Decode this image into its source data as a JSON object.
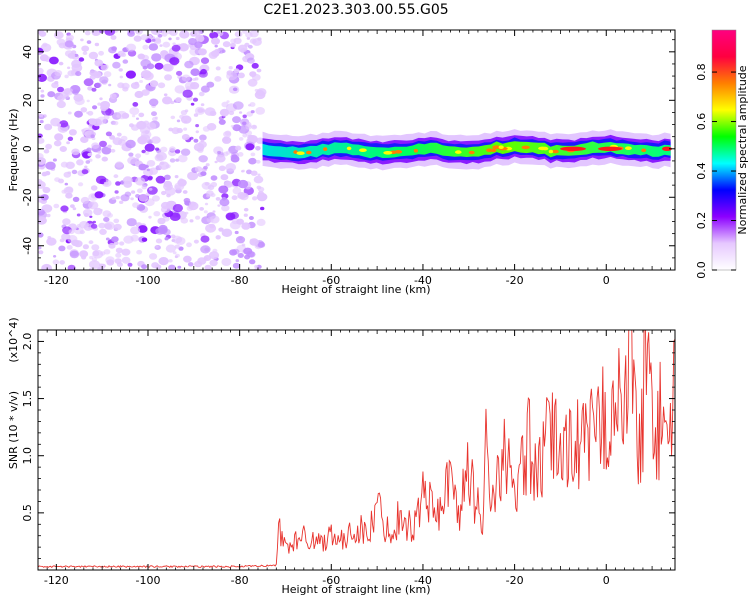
{
  "title": "C2E1.2023.303.00.55.G05",
  "chart_data": [
    {
      "type": "heatmap",
      "xlabel": "Height of straight line (km)",
      "ylabel": "Frequency (Hz)",
      "xlim": [
        -124,
        15
      ],
      "ylim": [
        -50,
        49
      ],
      "xticks": [
        -120,
        -100,
        -80,
        -60,
        -40,
        -20,
        0
      ],
      "yticks": [
        -40,
        -20,
        0,
        20,
        40
      ],
      "colorbar": {
        "label": "Normalized spectral amplitude",
        "range": [
          0,
          0.97
        ],
        "ticks": [
          0.0,
          0.2,
          0.4,
          0.6,
          0.8
        ],
        "colors": [
          "#ffffff",
          "#e6c8ff",
          "#8c00ff",
          "#0000ff",
          "#00ffff",
          "#00ff00",
          "#ffff00",
          "#ff7f00",
          "#ff0040",
          "#ff0080"
        ]
      },
      "regions": [
        {
          "x_from": -124,
          "x_to": -75,
          "freq_from": -50,
          "freq_to": 49,
          "amplitude": 0.12,
          "texture": "speckle"
        },
        {
          "x_from": -75,
          "x_to": 15,
          "freq_center": 0,
          "freq_halfwidth": 3,
          "amplitude_from": 0.3,
          "amplitude_to": 0.9
        }
      ]
    },
    {
      "type": "line",
      "xlabel": "Height of straight line (km)",
      "ylabel": "SNR (10 * v/v)",
      "y_multiplier": "(x10^4)",
      "xlim": [
        -124,
        15
      ],
      "ylim": [
        0,
        2.1
      ],
      "xticks": [
        -120,
        -100,
        -80,
        -60,
        -40,
        -20,
        0
      ],
      "yticks": [
        0.5,
        1.0,
        1.5,
        2.0
      ],
      "color": "#e8332d",
      "series": [
        {
          "x": [
            -124,
            -110,
            -100,
            -90,
            -80,
            -72,
            -71.5,
            -70,
            -68,
            -65,
            -62,
            -60,
            -57,
            -55,
            -52,
            -50,
            -47,
            -45,
            -42,
            -40,
            -37,
            -35,
            -32,
            -30,
            -27,
            -26,
            -25,
            -22,
            -20,
            -17,
            -15,
            -12,
            -10,
            -7,
            -5,
            -2,
            0,
            2,
            4,
            5.5,
            7,
            9,
            11,
            12,
            13,
            15
          ],
          "y": [
            0.03,
            0.03,
            0.03,
            0.03,
            0.03,
            0.04,
            0.38,
            0.2,
            0.25,
            0.3,
            0.23,
            0.35,
            0.22,
            0.4,
            0.3,
            0.55,
            0.3,
            0.5,
            0.35,
            0.7,
            0.45,
            0.8,
            0.55,
            0.85,
            0.4,
            1.52,
            0.5,
            1.1,
            0.55,
            1.15,
            0.75,
            1.25,
            1.0,
            1.2,
            1.05,
            1.25,
            1.35,
            1.5,
            1.3,
            2.08,
            0.9,
            1.95,
            1.1,
            1.4,
            1.15,
            1.62
          ]
        }
      ]
    }
  ]
}
